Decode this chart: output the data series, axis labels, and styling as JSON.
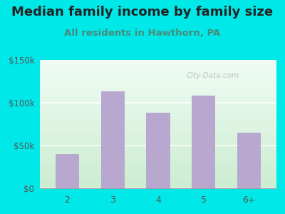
{
  "title": "Median family income by family size",
  "subtitle": "All residents in Hawthorn, PA",
  "categories": [
    "2",
    "3",
    "4",
    "5",
    "6+"
  ],
  "values": [
    40000,
    113000,
    88000,
    108000,
    65000
  ],
  "bar_color": "#b8a8d0",
  "background_outer": "#00e8e8",
  "background_inner_topleft": "#f0faf5",
  "background_inner_bottomleft": "#c8ecd0",
  "ylim": [
    0,
    150000
  ],
  "yticks": [
    0,
    50000,
    100000,
    150000
  ],
  "title_fontsize": 13,
  "subtitle_fontsize": 9.5,
  "title_color": "#222222",
  "subtitle_color": "#4a8a7a",
  "tick_color": "#555555",
  "watermark_text": "City-Data.com",
  "watermark_color": "#b0b8c0"
}
